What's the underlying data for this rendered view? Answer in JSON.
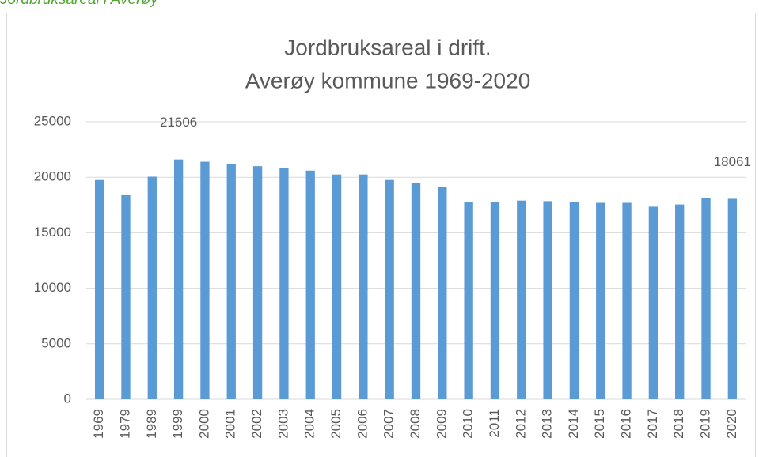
{
  "caption": "Jordbruksareal i Averøy",
  "chart_data": {
    "type": "bar",
    "title": [
      "Jordbruksareal i drift.",
      "Averøy kommune 1969-2020"
    ],
    "categories": [
      "1969",
      "1979",
      "1989",
      "1999",
      "2000",
      "2001",
      "2002",
      "2003",
      "2004",
      "2005",
      "2006",
      "2007",
      "2008",
      "2009",
      "2010",
      "2011",
      "2012",
      "2013",
      "2014",
      "2015",
      "2016",
      "2017",
      "2018",
      "2019",
      "2020"
    ],
    "values": [
      19750,
      18450,
      20050,
      21606,
      21400,
      21200,
      21000,
      20850,
      20600,
      20250,
      20250,
      19750,
      19500,
      19150,
      17800,
      17750,
      17900,
      17850,
      17800,
      17700,
      17700,
      17350,
      17550,
      18100,
      18061
    ],
    "value_labels": [
      null,
      null,
      null,
      "21606",
      null,
      null,
      null,
      null,
      null,
      null,
      null,
      null,
      null,
      null,
      null,
      null,
      null,
      null,
      null,
      null,
      null,
      null,
      null,
      null,
      "18061"
    ],
    "color": "#5b9bd5",
    "ylim": [
      0,
      25000
    ],
    "yticks": [
      0,
      5000,
      10000,
      15000,
      20000,
      25000
    ],
    "grid": true
  }
}
